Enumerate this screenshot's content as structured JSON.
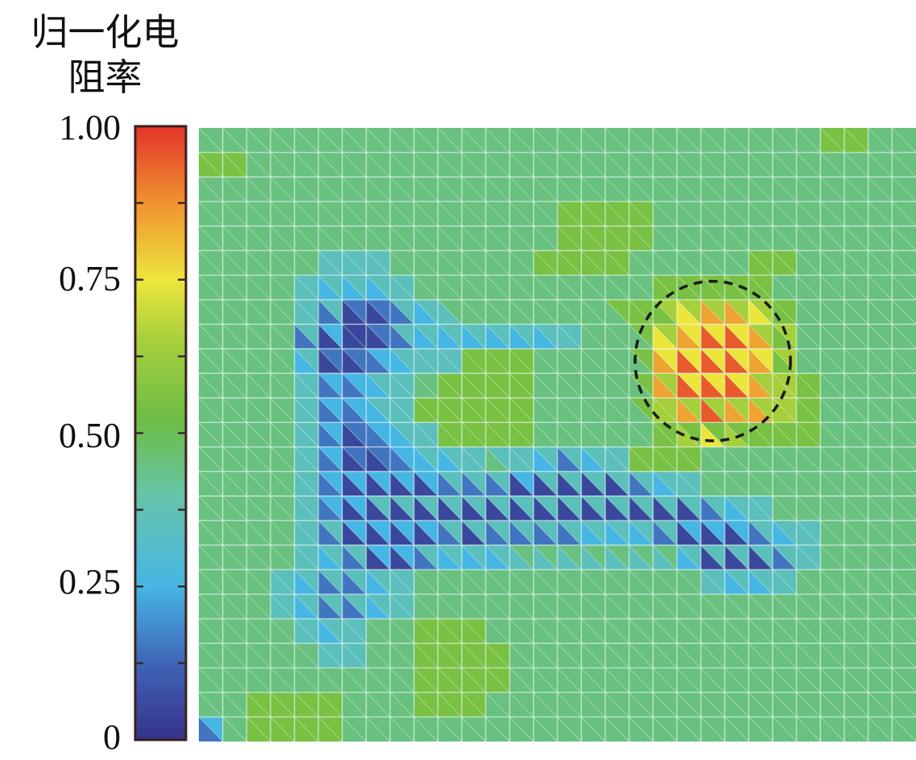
{
  "chart_data": {
    "type": "heatmap",
    "title": "归一化电阻率",
    "title_lines": [
      "归一化电",
      "阻率"
    ],
    "colorbar": {
      "min": 0,
      "max": 1,
      "ticks": [
        {
          "value": 1.0,
          "label": "1.00"
        },
        {
          "value": 0.75,
          "label": "0.75"
        },
        {
          "value": 0.5,
          "label": "0.50"
        },
        {
          "value": 0.25,
          "label": "0.25"
        },
        {
          "value": 0,
          "label": "0"
        }
      ],
      "minor_tick_step": 0.125,
      "stops": [
        {
          "value": 0.0,
          "color": "#35338a"
        },
        {
          "value": 0.12,
          "color": "#3f62b5"
        },
        {
          "value": 0.25,
          "color": "#46b6e4"
        },
        {
          "value": 0.4,
          "color": "#66c4a8"
        },
        {
          "value": 0.52,
          "color": "#6cbd45"
        },
        {
          "value": 0.65,
          "color": "#a6cf3c"
        },
        {
          "value": 0.75,
          "color": "#ece63c"
        },
        {
          "value": 0.87,
          "color": "#f0962f"
        },
        {
          "value": 1.0,
          "color": "#e3342a"
        }
      ]
    },
    "grid": {
      "columns": 30,
      "rows": 25,
      "cell_split": "diagonal top-left to bottom-right"
    },
    "level_values": [
      0.05,
      0.15,
      0.25,
      0.35,
      0.45,
      0.55,
      0.65,
      0.75,
      0.85,
      0.95
    ],
    "lower_triangle_levels": [
      "444444444444444444444444445544",
      "554444444444444444444444444444",
      "444444444444444444444444444444",
      "444444444444444555544444444444",
      "444444444444444555544444444444",
      "444443334444445555444445544444",
      "444432223444444444455555444444",
      "444431001234444444557887544444",
      "444410001222222344478998544444",
      "444420012335554444489998544444",
      "444431123455554444489998654444",
      "444431123555554444468988654444",
      "444431012355554444456765554444",
      "444431001223432123555444444444",
      "444431000011100000123444444444",
      "444431000000000000000123444444",
      "444431000010111122210001234444",
      "444432100122233333332000134444",
      "444321123444444444444322344444",
      "444321123444444444444444444444",
      "444432344555444444444444444444",
      "444443344555544444444444444444",
      "444444444555544444444444444444",
      "445555444555444444444444444444",
      "145555444444444444444444444444"
    ],
    "upper_triangle_levels": [
      "444444444444444444444444445544",
      "554444444444444444444444444444",
      "444444444444444444444444444444",
      "444444444444444555544444444444",
      "444444444444444555544444444444",
      "444443334444445555444445544444",
      "444433333444444444455555444444",
      "444433113344444445566666544444",
      "444432013333333344567776644444",
      "444431123335554444577777644444",
      "444432233455554444567776654444",
      "444432233555554444566666654444",
      "444432123355554444455555554444",
      "444432112333333333555444444444",
      "444432222233323333333444444444",
      "444432233333333333333333444444",
      "444433222233333333332223334444",
      "444433322333344444443333334444",
      "444333333444444444444333344444",
      "444333333444444444444444444444",
      "444433344555444444444444444444",
      "444443344555544444444444444444",
      "444444444555544444444444444444",
      "445555444555444444444444444444",
      "245555444444444444444444444444"
    ],
    "annotation": {
      "type": "dashed-circle",
      "center_col": 21.5,
      "center_row": 9.5,
      "radius_cells": 3.25,
      "color": "#1a1a1a"
    }
  }
}
